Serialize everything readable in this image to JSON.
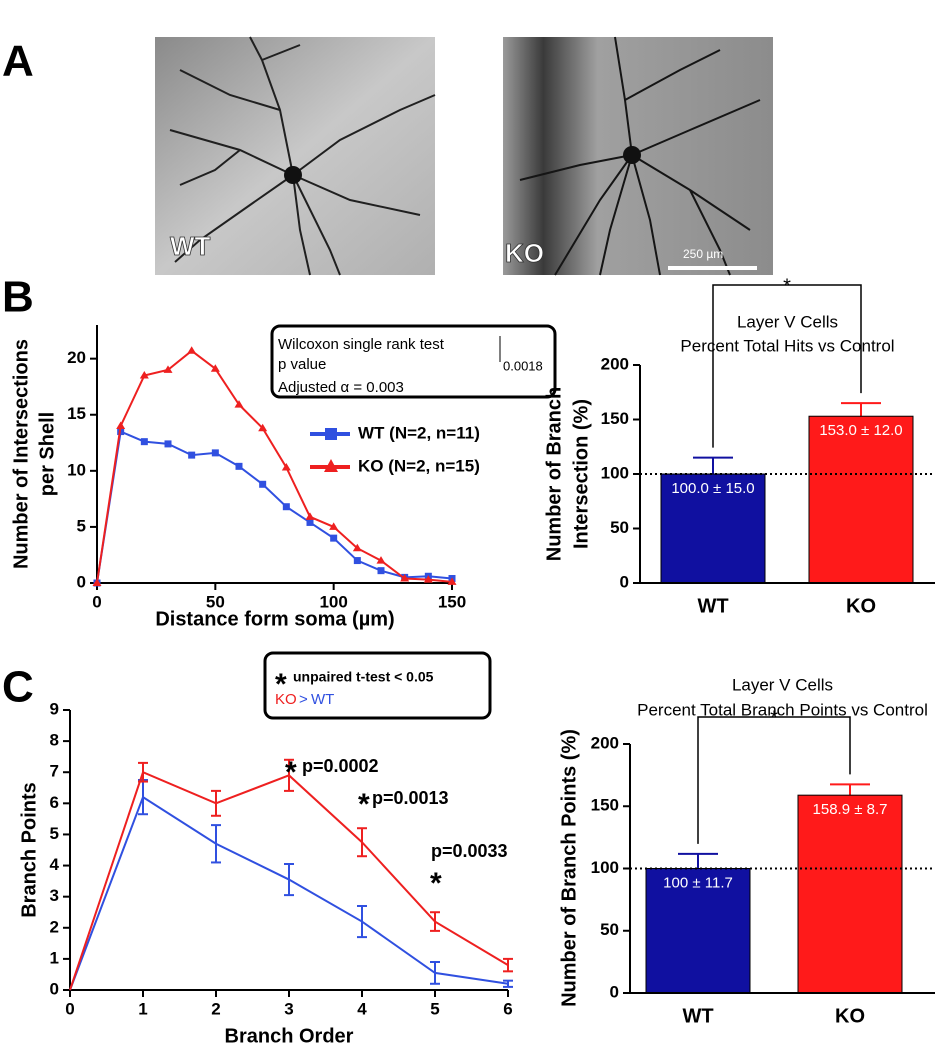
{
  "panel_labels": [
    "A",
    "B",
    "C"
  ],
  "images": [
    {
      "label": "WT"
    },
    {
      "label": "KO",
      "scale_bar": "250 µm"
    }
  ],
  "chart_data": [
    {
      "type": "line",
      "x_label": "Distance form soma (µm)",
      "y_label": [
        "Number of Intersections",
        "per Shell"
      ],
      "x": [
        0,
        10,
        20,
        30,
        40,
        50,
        60,
        70,
        80,
        90,
        100,
        110,
        120,
        130,
        140,
        150
      ],
      "xlim": [
        0,
        150
      ],
      "xticks": [
        0,
        50,
        100,
        150
      ],
      "ylim": [
        0,
        23
      ],
      "yticks": [
        0,
        5,
        10,
        15,
        20
      ],
      "series": [
        {
          "name": "WT (N=2, n=11)",
          "color": "#3050e0",
          "marker": "square",
          "values": [
            0,
            13.5,
            12.6,
            12.4,
            11.4,
            11.6,
            10.4,
            8.8,
            6.8,
            5.4,
            4.0,
            2.0,
            1.1,
            0.5,
            0.6,
            0.4
          ]
        },
        {
          "name": "KO (N=2, n=15)",
          "color": "#ee2020",
          "marker": "triangle",
          "values": [
            0,
            14.0,
            18.5,
            19.0,
            20.7,
            19.1,
            15.9,
            13.8,
            10.3,
            5.9,
            5.0,
            3.1,
            2.0,
            0.4,
            0.3,
            0.1
          ]
        }
      ],
      "legend": "right",
      "annotation": {
        "lines": [
          "Wilcoxon single rank test",
          " p value",
          "Adjusted α = 0.003"
        ],
        "value": "0.0018"
      }
    },
    {
      "type": "bar",
      "title": [
        "Layer V Cells",
        "Percent Total Hits vs Control"
      ],
      "y_label": [
        "Number of Branch",
        "Intersection (%)"
      ],
      "categories": [
        "WT",
        "KO"
      ],
      "values": [
        100,
        153.0
      ],
      "errors": [
        15.0,
        12.0
      ],
      "value_labels": [
        "100.0 ± 15.0",
        "153.0 ± 12.0"
      ],
      "colors": [
        "#1010a0",
        "#ff1a1a"
      ],
      "ylim": [
        0,
        200
      ],
      "yticks": [
        0,
        50,
        100,
        150,
        200
      ],
      "reference_line": 100,
      "significance": "*"
    },
    {
      "type": "line",
      "x_label": "Branch Order",
      "y_label": [
        "Branch Points"
      ],
      "x": [
        0,
        1,
        2,
        3,
        4,
        5,
        6
      ],
      "xlim": [
        0,
        6
      ],
      "xticks": [
        0,
        1,
        2,
        3,
        4,
        5,
        6
      ],
      "ylim": [
        0,
        9
      ],
      "yticks": [
        0,
        1,
        2,
        3,
        4,
        5,
        6,
        7,
        8,
        9
      ],
      "series": [
        {
          "color": "#3050e0",
          "marker": null,
          "values": [
            0,
            6.2,
            4.7,
            3.55,
            2.2,
            0.55,
            0.2
          ],
          "errors": [
            null,
            0.55,
            0.6,
            0.5,
            0.5,
            0.35,
            0.1
          ]
        },
        {
          "color": "#ee2020",
          "marker": null,
          "values": [
            0,
            7.0,
            6.0,
            6.9,
            4.75,
            2.2,
            0.8
          ],
          "errors": [
            null,
            0.3,
            0.4,
            0.5,
            0.45,
            0.3,
            0.2
          ]
        }
      ],
      "annotations": [
        "*",
        "p=0.0002",
        "*",
        "p=0.0013",
        "p=0.0033",
        "*"
      ],
      "test_box": {
        "star": "*",
        "text": "unpaired t-test < 0.05",
        "comparison": [
          "KO",
          ">",
          "WT"
        ]
      }
    },
    {
      "type": "bar",
      "title": [
        "Layer V Cells",
        "Percent Total Branch Points vs Control"
      ],
      "y_label": [
        "Number of Branch Points (%)"
      ],
      "categories": [
        "WT",
        "KO"
      ],
      "values": [
        100,
        158.9
      ],
      "errors": [
        11.7,
        8.7
      ],
      "value_labels": [
        "100 ± 11.7",
        "158.9 ± 8.7"
      ],
      "colors": [
        "#1010a0",
        "#ff1a1a"
      ],
      "ylim": [
        0,
        200
      ],
      "yticks": [
        0,
        50,
        100,
        150,
        200
      ],
      "reference_line": 100,
      "significance": "*"
    }
  ]
}
